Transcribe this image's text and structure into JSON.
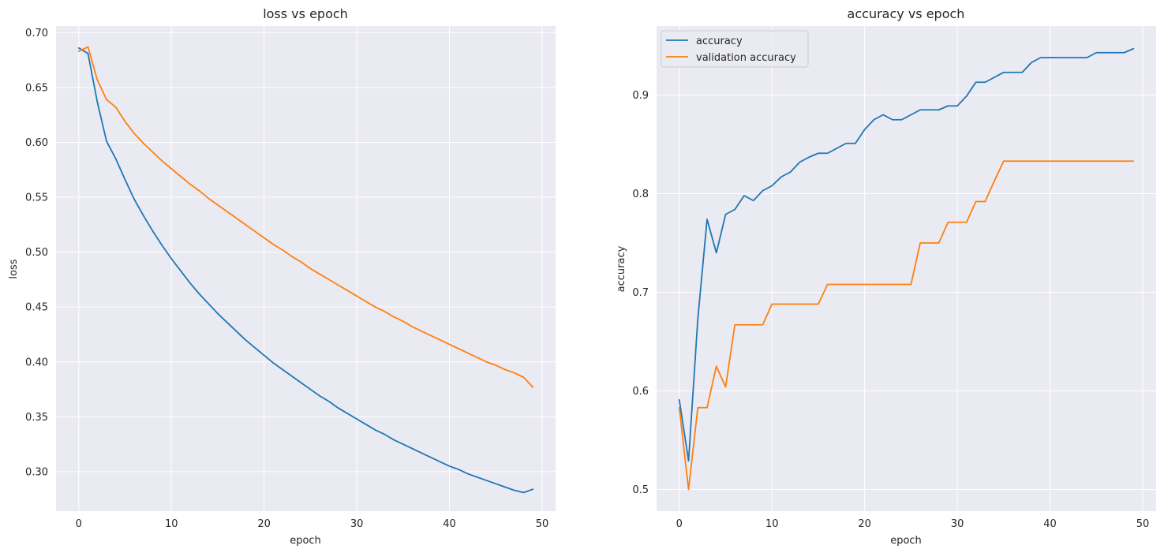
{
  "chart_data": [
    {
      "type": "line",
      "title": "loss vs epoch",
      "xlabel": "epoch",
      "ylabel": "loss",
      "xlim": [
        -2.45,
        51.45
      ],
      "ylim": [
        0.264,
        0.706
      ],
      "xticks": [
        0,
        10,
        20,
        30,
        40,
        50
      ],
      "xtick_labels": [
        "0",
        "10",
        "20",
        "30",
        "40",
        "50"
      ],
      "yticks": [
        0.3,
        0.35,
        0.4,
        0.45,
        0.5,
        0.55,
        0.6,
        0.65,
        0.7
      ],
      "ytick_labels": [
        "0.30",
        "0.35",
        "0.40",
        "0.45",
        "0.50",
        "0.55",
        "0.60",
        "0.65",
        "0.70"
      ],
      "grid": true,
      "legend": "none",
      "x": [
        0,
        1,
        2,
        3,
        4,
        5,
        6,
        7,
        8,
        9,
        10,
        11,
        12,
        13,
        14,
        15,
        16,
        17,
        18,
        19,
        20,
        21,
        22,
        23,
        24,
        25,
        26,
        27,
        28,
        29,
        30,
        31,
        32,
        33,
        34,
        35,
        36,
        37,
        38,
        39,
        40,
        41,
        42,
        43,
        44,
        45,
        46,
        47,
        48,
        49
      ],
      "series": [
        {
          "color": "#1f77b4",
          "values": [
            0.686,
            0.681,
            0.637,
            0.601,
            0.585,
            0.566,
            0.548,
            0.533,
            0.519,
            0.506,
            0.494,
            0.483,
            0.472,
            0.462,
            0.453,
            0.444,
            0.436,
            0.428,
            0.42,
            0.413,
            0.406,
            0.399,
            0.393,
            0.387,
            0.381,
            0.375,
            0.369,
            0.364,
            0.358,
            0.353,
            0.348,
            0.343,
            0.338,
            0.334,
            0.329,
            0.325,
            0.321,
            0.317,
            0.313,
            0.309,
            0.305,
            0.302,
            0.298,
            0.295,
            0.292,
            0.289,
            0.286,
            0.283,
            0.281,
            0.284
          ]
        },
        {
          "color": "#ff7f0e",
          "values": [
            0.683,
            0.687,
            0.657,
            0.639,
            0.632,
            0.619,
            0.608,
            0.599,
            0.591,
            0.583,
            0.576,
            0.569,
            0.562,
            0.556,
            0.549,
            0.543,
            0.537,
            0.531,
            0.525,
            0.519,
            0.513,
            0.507,
            0.502,
            0.496,
            0.491,
            0.485,
            0.48,
            0.475,
            0.47,
            0.465,
            0.46,
            0.455,
            0.45,
            0.446,
            0.441,
            0.437,
            0.432,
            0.428,
            0.424,
            0.42,
            0.416,
            0.412,
            0.408,
            0.404,
            0.4,
            0.397,
            0.393,
            0.39,
            0.386,
            0.377
          ]
        }
      ]
    },
    {
      "type": "line",
      "title": "accuracy vs epoch",
      "xlabel": "epoch",
      "ylabel": "accuracy",
      "xlim": [
        -2.45,
        51.45
      ],
      "ylim": [
        0.478,
        0.97
      ],
      "xticks": [
        0,
        10,
        20,
        30,
        40,
        50
      ],
      "xtick_labels": [
        "0",
        "10",
        "20",
        "30",
        "40",
        "50"
      ],
      "yticks": [
        0.5,
        0.6,
        0.7,
        0.8,
        0.9
      ],
      "ytick_labels": [
        "0.5",
        "0.6",
        "0.7",
        "0.8",
        "0.9"
      ],
      "grid": true,
      "legend": "top-left",
      "x": [
        0,
        1,
        2,
        3,
        4,
        5,
        6,
        7,
        8,
        9,
        10,
        11,
        12,
        13,
        14,
        15,
        16,
        17,
        18,
        19,
        20,
        21,
        22,
        23,
        24,
        25,
        26,
        27,
        28,
        29,
        30,
        31,
        32,
        33,
        34,
        35,
        36,
        37,
        38,
        39,
        40,
        41,
        42,
        43,
        44,
        45,
        46,
        47,
        48,
        49
      ],
      "series": [
        {
          "name": "accuracy",
          "color": "#1f77b4",
          "values": [
            0.591,
            0.529,
            0.673,
            0.774,
            0.74,
            0.779,
            0.784,
            0.798,
            0.793,
            0.803,
            0.808,
            0.817,
            0.822,
            0.832,
            0.837,
            0.841,
            0.841,
            0.846,
            0.851,
            0.851,
            0.865,
            0.875,
            0.88,
            0.875,
            0.875,
            0.88,
            0.885,
            0.885,
            0.885,
            0.889,
            0.889,
            0.899,
            0.913,
            0.913,
            0.918,
            0.923,
            0.923,
            0.923,
            0.933,
            0.938,
            0.938,
            0.938,
            0.938,
            0.938,
            0.938,
            0.943,
            0.943,
            0.943,
            0.943,
            0.947
          ]
        },
        {
          "name": "validation accuracy",
          "color": "#ff7f0e",
          "values": [
            0.583,
            0.5,
            0.583,
            0.583,
            0.625,
            0.604,
            0.667,
            0.667,
            0.667,
            0.667,
            0.688,
            0.688,
            0.688,
            0.688,
            0.688,
            0.688,
            0.708,
            0.708,
            0.708,
            0.708,
            0.708,
            0.708,
            0.708,
            0.708,
            0.708,
            0.708,
            0.75,
            0.75,
            0.75,
            0.771,
            0.771,
            0.771,
            0.792,
            0.792,
            0.813,
            0.833,
            0.833,
            0.833,
            0.833,
            0.833,
            0.833,
            0.833,
            0.833,
            0.833,
            0.833,
            0.833,
            0.833,
            0.833,
            0.833,
            0.833
          ]
        }
      ]
    }
  ]
}
